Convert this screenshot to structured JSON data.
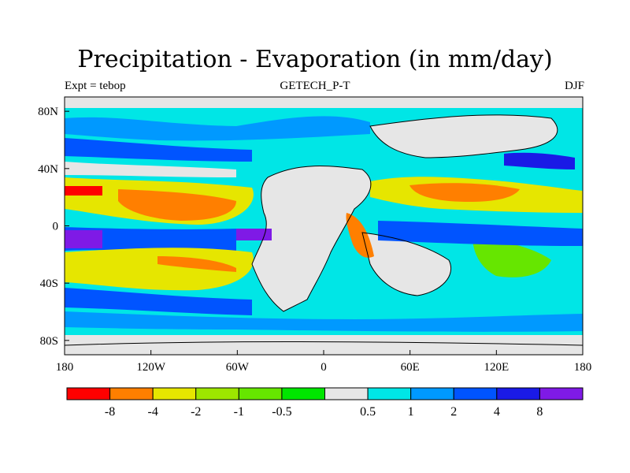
{
  "title": "Precipitation - Evaporation (in mm/day)",
  "subtitle_left": "Expt = tebop",
  "subtitle_center": "GETECH_P-T",
  "subtitle_right": "DJF",
  "map": {
    "lon_ticks": [
      "180",
      "120W",
      "60W",
      "0",
      "60E",
      "120E",
      "180"
    ],
    "lat_ticks": [
      "80N",
      "40N",
      "0",
      "40S",
      "80S"
    ],
    "lat_tick_values": [
      80,
      40,
      0,
      -40,
      -80
    ],
    "lon_range": [
      -180,
      180
    ],
    "lat_range": [
      -90,
      90
    ]
  },
  "colorbar": {
    "colors": [
      "#ff0000",
      "#ff7f00",
      "#e6e600",
      "#9de600",
      "#66e600",
      "#00e600",
      "#e6e6e6",
      "#00e6e6",
      "#0099ff",
      "#0054ff",
      "#1a1ae6",
      "#7f1ae6"
    ],
    "labels": [
      "-8",
      "-4",
      "-2",
      "-1",
      "-0.5",
      "0.5",
      "1",
      "2",
      "4",
      "8"
    ]
  },
  "legend_colors": {
    "land": "#e6e6e6",
    "ocean_base": "#00e6e6"
  }
}
